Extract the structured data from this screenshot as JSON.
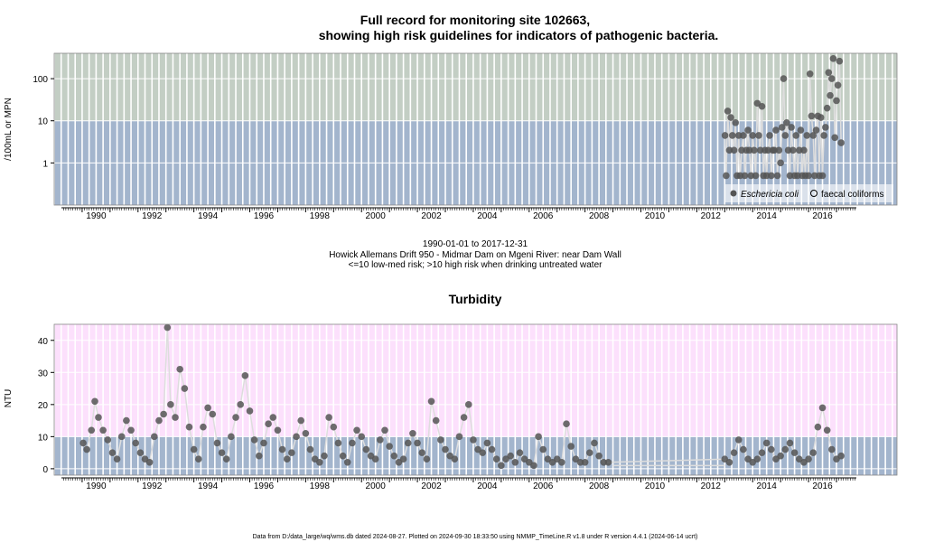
{
  "chart_data": [
    {
      "type": "scatter",
      "title_lines": [
        "Full record for monitoring site 102663,",
        "showing high risk guidelines for indicators of pathogenic bacteria."
      ],
      "ylabel": "/100mL or MPN",
      "y_scale": "log",
      "ylim": [
        0.1,
        400
      ],
      "xlim": [
        "1989-01-01",
        "2019-03-01"
      ],
      "x_tick_labels": [
        "1990",
        "1992",
        "1994",
        "1996",
        "1998",
        "2000",
        "2002",
        "2004",
        "2006",
        "2008",
        "2010",
        "2012",
        "2014",
        "2016"
      ],
      "y_ticks": [
        1,
        10,
        100
      ],
      "y_tick_labels": [
        "1",
        "10",
        "100"
      ],
      "threshold": 10,
      "colors": {
        "high_risk_band": "#c3cec4",
        "low_risk_band": "#a3b5cd",
        "points": "#555555",
        "lines": "#dddddd"
      },
      "legend": {
        "position": "bottom-right",
        "entries": [
          "Eschericia coli",
          "faecal coliforms"
        ]
      },
      "series": [
        {
          "name": "Eschericia coli",
          "points": [
            [
              "2013-01-05",
              4.5
            ],
            [
              "2013-01-20",
              0.5
            ],
            [
              "2013-02-10",
              17
            ],
            [
              "2013-03-01",
              2
            ],
            [
              "2013-03-20",
              12
            ],
            [
              "2013-04-10",
              4.5
            ],
            [
              "2013-05-01",
              2
            ],
            [
              "2013-05-20",
              9
            ],
            [
              "2013-06-10",
              0.5
            ],
            [
              "2013-07-01",
              4.5
            ],
            [
              "2013-07-20",
              0.5
            ],
            [
              "2013-08-10",
              2
            ],
            [
              "2013-09-01",
              4.5
            ],
            [
              "2013-09-20",
              0.5
            ],
            [
              "2013-10-10",
              2
            ],
            [
              "2013-11-01",
              6
            ],
            [
              "2013-11-20",
              2
            ],
            [
              "2013-12-10",
              0.5
            ],
            [
              "2014-01-01",
              4.5
            ],
            [
              "2014-01-20",
              2
            ],
            [
              "2014-02-10",
              0.5
            ],
            [
              "2014-03-01",
              26
            ],
            [
              "2014-03-20",
              4.5
            ],
            [
              "2014-04-10",
              2
            ],
            [
              "2014-05-01",
              22
            ],
            [
              "2014-05-20",
              0.5
            ],
            [
              "2014-06-10",
              2
            ],
            [
              "2014-07-01",
              0.5
            ],
            [
              "2014-07-20",
              2
            ],
            [
              "2014-08-10",
              4.5
            ],
            [
              "2014-09-01",
              0.5
            ],
            [
              "2014-09-20",
              2
            ],
            [
              "2014-10-10",
              2
            ],
            [
              "2014-11-01",
              6
            ],
            [
              "2014-11-20",
              0.5
            ],
            [
              "2014-12-10",
              2
            ],
            [
              "2015-01-01",
              1
            ],
            [
              "2015-01-20",
              7
            ],
            [
              "2015-02-10",
              100
            ],
            [
              "2015-03-01",
              4.5
            ],
            [
              "2015-03-20",
              9
            ],
            [
              "2015-04-10",
              2
            ],
            [
              "2015-05-01",
              0.5
            ],
            [
              "2015-05-20",
              7
            ],
            [
              "2015-06-10",
              2
            ],
            [
              "2015-07-01",
              0.5
            ],
            [
              "2015-07-20",
              4.5
            ],
            [
              "2015-08-10",
              0.5
            ],
            [
              "2015-09-01",
              2
            ],
            [
              "2015-09-20",
              6
            ],
            [
              "2015-10-10",
              0.5
            ],
            [
              "2015-11-01",
              2
            ],
            [
              "2015-11-20",
              0.5
            ],
            [
              "2015-12-10",
              4.5
            ],
            [
              "2016-01-01",
              0.5
            ],
            [
              "2016-01-20",
              130
            ],
            [
              "2016-02-10",
              13
            ],
            [
              "2016-03-01",
              4.5
            ],
            [
              "2016-03-20",
              0.5
            ],
            [
              "2016-04-10",
              6
            ],
            [
              "2016-05-01",
              13
            ],
            [
              "2016-05-20",
              0.5
            ],
            [
              "2016-06-10",
              12
            ],
            [
              "2016-07-01",
              0.5
            ],
            [
              "2016-07-20",
              4.5
            ],
            [
              "2016-08-10",
              7
            ],
            [
              "2016-09-01",
              20
            ],
            [
              "2016-09-20",
              140
            ],
            [
              "2016-10-10",
              40
            ],
            [
              "2016-11-01",
              100
            ],
            [
              "2016-11-20",
              300
            ],
            [
              "2016-12-10",
              4
            ],
            [
              "2017-01-01",
              30
            ],
            [
              "2017-01-20",
              70
            ],
            [
              "2017-02-10",
              260
            ],
            [
              "2017-03-01",
              3
            ]
          ]
        },
        {
          "name": "faecal coliforms",
          "points": []
        }
      ]
    },
    {
      "type": "scatter",
      "title": "Turbidity",
      "ylabel": "NTU",
      "ylim": [
        -2,
        45
      ],
      "xlim": [
        "1989-01-01",
        "2019-03-01"
      ],
      "x_tick_labels": [
        "1990",
        "1992",
        "1994",
        "1996",
        "1998",
        "2000",
        "2002",
        "2004",
        "2006",
        "2008",
        "2010",
        "2012",
        "2014",
        "2016"
      ],
      "y_ticks": [
        0,
        10,
        20,
        30,
        40
      ],
      "y_tick_labels": [
        "0",
        "10",
        "20",
        "30",
        "40"
      ],
      "threshold": 10,
      "colors": {
        "high_band": "#fce0fc",
        "low_band": "#a3b5cd",
        "points": "#555555",
        "lines": "#dddddd"
      },
      "series": [
        {
          "name": "Turbidity",
          "points": [
            [
              "1990-01-15",
              8
            ],
            [
              "1990-03-01",
              6
            ],
            [
              "1990-05-01",
              12
            ],
            [
              "1990-06-15",
              21
            ],
            [
              "1990-08-01",
              16
            ],
            [
              "1990-10-01",
              12
            ],
            [
              "1990-12-01",
              9
            ],
            [
              "1991-02-01",
              5
            ],
            [
              "1991-04-01",
              3
            ],
            [
              "1991-06-01",
              10
            ],
            [
              "1991-08-01",
              15
            ],
            [
              "1991-10-01",
              12
            ],
            [
              "1991-12-01",
              8
            ],
            [
              "1992-02-01",
              5
            ],
            [
              "1992-04-01",
              3
            ],
            [
              "1992-06-01",
              2
            ],
            [
              "1992-08-01",
              10
            ],
            [
              "1992-10-01",
              15
            ],
            [
              "1992-12-01",
              17
            ],
            [
              "1993-01-20",
              44
            ],
            [
              "1993-03-01",
              20
            ],
            [
              "1993-05-01",
              16
            ],
            [
              "1993-07-01",
              31
            ],
            [
              "1993-09-01",
              25
            ],
            [
              "1993-11-01",
              13
            ],
            [
              "1994-01-01",
              6
            ],
            [
              "1994-03-01",
              3
            ],
            [
              "1994-05-01",
              13
            ],
            [
              "1994-07-01",
              19
            ],
            [
              "1994-09-01",
              17
            ],
            [
              "1994-11-01",
              8
            ],
            [
              "1995-01-01",
              5
            ],
            [
              "1995-03-01",
              3
            ],
            [
              "1995-05-01",
              10
            ],
            [
              "1995-07-01",
              16
            ],
            [
              "1995-09-01",
              20
            ],
            [
              "1995-11-01",
              29
            ],
            [
              "1996-01-01",
              18
            ],
            [
              "1996-03-01",
              9
            ],
            [
              "1996-05-01",
              4
            ],
            [
              "1996-07-01",
              8
            ],
            [
              "1996-09-01",
              14
            ],
            [
              "1996-11-01",
              16
            ],
            [
              "1997-01-01",
              12
            ],
            [
              "1997-03-01",
              6
            ],
            [
              "1997-05-01",
              3
            ],
            [
              "1997-07-01",
              5
            ],
            [
              "1997-09-01",
              10
            ],
            [
              "1997-11-01",
              15
            ],
            [
              "1998-01-01",
              11
            ],
            [
              "1998-03-01",
              6
            ],
            [
              "1998-05-01",
              3
            ],
            [
              "1998-07-01",
              2
            ],
            [
              "1998-09-01",
              4
            ],
            [
              "1998-11-01",
              16
            ],
            [
              "1999-01-01",
              13
            ],
            [
              "1999-03-01",
              8
            ],
            [
              "1999-05-01",
              4
            ],
            [
              "1999-07-01",
              2
            ],
            [
              "1999-09-01",
              8
            ],
            [
              "1999-11-01",
              12
            ],
            [
              "2000-01-01",
              10
            ],
            [
              "2000-03-01",
              6
            ],
            [
              "2000-05-01",
              4
            ],
            [
              "2000-07-01",
              3
            ],
            [
              "2000-09-01",
              9
            ],
            [
              "2000-11-01",
              12
            ],
            [
              "2001-01-01",
              7
            ],
            [
              "2001-03-01",
              4
            ],
            [
              "2001-05-01",
              2
            ],
            [
              "2001-07-01",
              3
            ],
            [
              "2001-09-01",
              8
            ],
            [
              "2001-11-01",
              11
            ],
            [
              "2002-01-01",
              8
            ],
            [
              "2002-03-01",
              5
            ],
            [
              "2002-05-01",
              3
            ],
            [
              "2002-07-01",
              21
            ],
            [
              "2002-09-01",
              15
            ],
            [
              "2002-11-01",
              9
            ],
            [
              "2003-01-01",
              6
            ],
            [
              "2003-03-01",
              4
            ],
            [
              "2003-05-01",
              3
            ],
            [
              "2003-07-01",
              10
            ],
            [
              "2003-09-01",
              16
            ],
            [
              "2003-11-01",
              20
            ],
            [
              "2004-01-01",
              9
            ],
            [
              "2004-03-01",
              6
            ],
            [
              "2004-05-01",
              5
            ],
            [
              "2004-07-01",
              8
            ],
            [
              "2004-09-01",
              6
            ],
            [
              "2004-11-01",
              3
            ],
            [
              "2005-01-01",
              1
            ],
            [
              "2005-03-01",
              3
            ],
            [
              "2005-05-01",
              4
            ],
            [
              "2005-07-01",
              2
            ],
            [
              "2005-09-01",
              5
            ],
            [
              "2005-11-01",
              3
            ],
            [
              "2006-01-01",
              2
            ],
            [
              "2006-03-01",
              1
            ],
            [
              "2006-05-01",
              10
            ],
            [
              "2006-07-01",
              6
            ],
            [
              "2006-09-01",
              3
            ],
            [
              "2006-11-01",
              2
            ],
            [
              "2007-01-01",
              3
            ],
            [
              "2007-03-01",
              2
            ],
            [
              "2007-05-01",
              14
            ],
            [
              "2007-07-01",
              7
            ],
            [
              "2007-09-01",
              3
            ],
            [
              "2007-11-01",
              2
            ],
            [
              "2008-01-01",
              2
            ],
            [
              "2008-03-01",
              5
            ],
            [
              "2008-05-01",
              8
            ],
            [
              "2008-07-01",
              4
            ],
            [
              "2008-09-01",
              2
            ],
            [
              "2008-11-01",
              2
            ],
            [
              "2013-01-01",
              3
            ],
            [
              "2013-03-01",
              2
            ],
            [
              "2013-05-01",
              5
            ],
            [
              "2013-07-01",
              9
            ],
            [
              "2013-09-01",
              6
            ],
            [
              "2013-11-01",
              3
            ],
            [
              "2014-01-01",
              2
            ],
            [
              "2014-03-01",
              3
            ],
            [
              "2014-05-01",
              5
            ],
            [
              "2014-07-01",
              8
            ],
            [
              "2014-09-01",
              6
            ],
            [
              "2014-11-01",
              3
            ],
            [
              "2015-01-01",
              4
            ],
            [
              "2015-03-01",
              6
            ],
            [
              "2015-05-01",
              8
            ],
            [
              "2015-07-01",
              5
            ],
            [
              "2015-09-01",
              3
            ],
            [
              "2015-11-01",
              2
            ],
            [
              "2016-01-01",
              3
            ],
            [
              "2016-03-01",
              5
            ],
            [
              "2016-05-01",
              13
            ],
            [
              "2016-07-01",
              19
            ],
            [
              "2016-09-01",
              12
            ],
            [
              "2016-11-01",
              6
            ],
            [
              "2017-01-01",
              3
            ],
            [
              "2017-03-01",
              4
            ]
          ]
        }
      ]
    }
  ],
  "caption": {
    "line1": "1990-01-01 to 2017-12-31",
    "line2": "Howick Allemans Drift 950 - Midmar Dam on Mgeni River: near Dam Wall",
    "line3": "<=10 low-med risk; >10 high risk when drinking untreated water"
  },
  "footer": "Data from D:/data_large/wq/wms.db dated 2024-08-27. Plotted on 2024-09-30 18:33:50 using NMMP_TimeLine.R v1.8 under R version 4.4.1 (2024-06-14 ucrt)"
}
